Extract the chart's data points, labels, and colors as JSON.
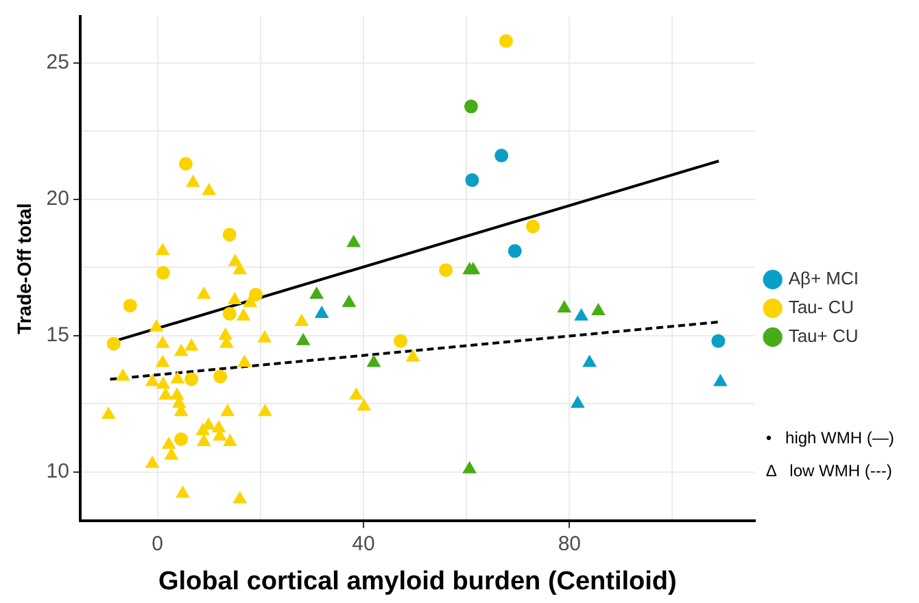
{
  "chart_data": {
    "type": "scatter",
    "xlabel": "Global cortical amyloid burden (Centiloid)",
    "ylabel": "Trade-Off total",
    "xlim": [
      -15,
      116
    ],
    "xticks": [
      0,
      {
        "value": 20,
        "label": null
      },
      40,
      {
        "value": 60,
        "label": null
      },
      80,
      {
        "value": 100,
        "label": null
      }
    ],
    "ylim": [
      8.2,
      26.7
    ],
    "yticks": [
      10,
      {
        "value": 12.5,
        "label": null
      },
      15,
      {
        "value": 17.5,
        "label": null
      },
      20,
      {
        "value": 22.5,
        "label": null
      },
      25
    ],
    "grid": true,
    "legend": "right",
    "marker": "circle",
    "annotations": [
      "•   high WMH (—)",
      "Δ   low WMH (---)"
    ],
    "series": [
      {
        "name": "Aβ+ MCI",
        "color": "#0a9fc6",
        "x": [
          66.8,
          61.1,
          69.4,
          108.9
        ],
        "values": [
          21.6,
          20.7,
          18.1,
          14.8
        ]
      },
      {
        "name": "Tau- CU",
        "color": "#fbd400",
        "x": [
          5.5,
          14.0,
          1.1,
          -5.3,
          -8.5,
          19.1,
          14.0,
          6.6,
          12.2,
          4.6,
          67.7,
          56.0,
          47.2,
          72.9
        ],
        "values": [
          21.3,
          18.7,
          17.3,
          16.1,
          14.7,
          16.5,
          15.8,
          13.4,
          13.5,
          11.2,
          25.8,
          17.4,
          14.8,
          19.0
        ]
      },
      {
        "name": "Tau+ CU",
        "color": "#47ad16",
        "x": [
          60.9
        ],
        "values": [
          23.4
        ]
      },
      {
        "color": "#0a9fc6",
        "marker": "triangle",
        "x": [
          31.9,
          82.3,
          83.9,
          81.6,
          109.3
        ],
        "values": [
          15.8,
          15.7,
          14.0,
          12.5,
          13.3
        ]
      },
      {
        "color": "#fbd400",
        "marker": "triangle",
        "x": [
          6.9,
          10.0,
          1.0,
          15.1,
          16.0,
          9.0,
          15.0,
          18.0,
          16.7,
          -0.2,
          1.0,
          4.6,
          6.6,
          13.2,
          13.4,
          20.8,
          1.0,
          16.9,
          -6.7,
          -1.0,
          1.1,
          3.9,
          1.6,
          3.8,
          4.2,
          4.6,
          -9.5,
          13.6,
          20.9,
          9.9,
          8.8,
          11.9,
          9.0,
          12.1,
          14.1,
          2.2,
          2.7,
          -1.0,
          4.9,
          16.0,
          28.0,
          49.6,
          38.6,
          40.1
        ],
        "values": [
          20.6,
          20.3,
          18.1,
          17.7,
          17.4,
          16.5,
          16.3,
          16.2,
          15.7,
          15.3,
          14.7,
          14.4,
          14.6,
          15.0,
          14.7,
          14.9,
          14.0,
          14.0,
          13.5,
          13.3,
          13.2,
          13.4,
          12.8,
          12.8,
          12.5,
          12.2,
          12.1,
          12.2,
          12.2,
          11.7,
          11.5,
          11.6,
          11.1,
          11.3,
          11.1,
          11.0,
          10.6,
          10.3,
          9.2,
          9.0,
          15.5,
          14.2,
          12.8,
          12.4
        ]
      },
      {
        "color": "#47ad16",
        "marker": "triangle",
        "x": [
          38.1,
          60.6,
          61.3,
          30.9,
          37.2,
          28.3,
          42.0,
          60.6,
          79.0,
          85.6
        ],
        "values": [
          18.4,
          17.4,
          17.4,
          16.5,
          16.2,
          14.8,
          14.0,
          10.1,
          16.0,
          15.9
        ]
      },
      {
        "type": "line",
        "color": "#000000",
        "marker": "none",
        "line_style": "solid",
        "x": [
          -9.2,
          109
        ],
        "values": [
          14.75,
          21.4
        ]
      },
      {
        "type": "line",
        "color": "#000000",
        "marker": "none",
        "line_style": "dashed",
        "x": [
          -9.2,
          109
        ],
        "values": [
          13.4,
          15.5
        ]
      }
    ]
  }
}
